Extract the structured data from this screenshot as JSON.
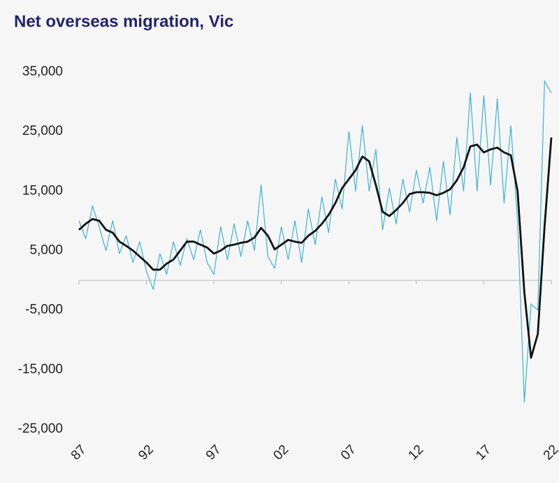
{
  "chart_data": {
    "type": "line",
    "title": "Net overseas migration, Vic",
    "x": [
      1987,
      1987.5,
      1988,
      1988.5,
      1989,
      1989.5,
      1990,
      1990.5,
      1991,
      1991.5,
      1992,
      1992.5,
      1993,
      1993.5,
      1994,
      1994.5,
      1995,
      1995.5,
      1996,
      1996.5,
      1997,
      1997.5,
      1998,
      1998.5,
      1999,
      1999.5,
      2000,
      2000.5,
      2001,
      2001.5,
      2002,
      2002.5,
      2003,
      2003.5,
      2004,
      2004.5,
      2005,
      2005.5,
      2006,
      2006.5,
      2007,
      2007.5,
      2008,
      2008.5,
      2009,
      2009.5,
      2010,
      2010.5,
      2011,
      2011.5,
      2012,
      2012.5,
      2013,
      2013.5,
      2014,
      2014.5,
      2015,
      2015.5,
      2016,
      2016.5,
      2017,
      2017.5,
      2018,
      2018.5,
      2019,
      2019.5,
      2020,
      2020.5,
      2021,
      2021.5,
      2022
    ],
    "series": [
      {
        "color": "#3bb3d6",
        "values": [
          10000,
          7000,
          12500,
          9000,
          5000,
          10000,
          4500,
          7500,
          3000,
          6500,
          1500,
          -1500,
          4500,
          1000,
          6500,
          2500,
          7000,
          3500,
          8500,
          3000,
          1000,
          9000,
          3500,
          9500,
          4000,
          10000,
          5000,
          16000,
          4000,
          2000,
          9000,
          3500,
          10000,
          3000,
          12000,
          6000,
          14000,
          8000,
          17000,
          12000,
          25000,
          15000,
          26000,
          15000,
          22000,
          8500,
          15500,
          9500,
          17000,
          11500,
          18500,
          13000,
          19000,
          10000,
          20000,
          11000,
          24000,
          15000,
          31500,
          15000,
          31000,
          16000,
          30500,
          13000,
          26000,
          10000,
          -20500,
          -4000,
          -5000,
          33500,
          31500
        ]
      },
      {
        "color": "#111111",
        "values": [
          8500,
          9500,
          10300,
          10000,
          8500,
          8000,
          6500,
          5800,
          5000,
          4000,
          3000,
          1800,
          1800,
          2800,
          3500,
          5000,
          6500,
          6500,
          6000,
          5500,
          4500,
          5000,
          5800,
          6000,
          6300,
          6500,
          7200,
          8800,
          7500,
          5200,
          6000,
          6800,
          6500,
          6300,
          7500,
          8300,
          9500,
          11000,
          13000,
          15500,
          17000,
          18500,
          20800,
          20000,
          16000,
          11500,
          10800,
          11800,
          13000,
          14500,
          14800,
          14800,
          14700,
          14300,
          14700,
          15300,
          16800,
          19000,
          22500,
          22800,
          21500,
          22000,
          22300,
          21500,
          21000,
          15000,
          -2000,
          -13000,
          -9000,
          9000,
          24000
        ]
      }
    ],
    "xlim": [
      1987,
      2022
    ],
    "xticks": [
      {
        "value": 1987,
        "label": "87"
      },
      {
        "value": 1992,
        "label": "92"
      },
      {
        "value": 1997,
        "label": "97"
      },
      {
        "value": 2002,
        "label": "02"
      },
      {
        "value": 2007,
        "label": "07"
      },
      {
        "value": 2012,
        "label": "12"
      },
      {
        "value": 2017,
        "label": "17"
      },
      {
        "value": 2022,
        "label": "22"
      }
    ],
    "ylim": [
      -25000,
      35000
    ],
    "yticks": [
      {
        "value": 35000,
        "label": "35,000"
      },
      {
        "value": 25000,
        "label": "25,000"
      },
      {
        "value": 15000,
        "label": "15,000"
      },
      {
        "value": 5000,
        "label": "5,000"
      },
      {
        "value": -5000,
        "label": "-5,000"
      },
      {
        "value": -15000,
        "label": "-15,000"
      },
      {
        "value": -25000,
        "label": "-25,000"
      }
    ]
  }
}
